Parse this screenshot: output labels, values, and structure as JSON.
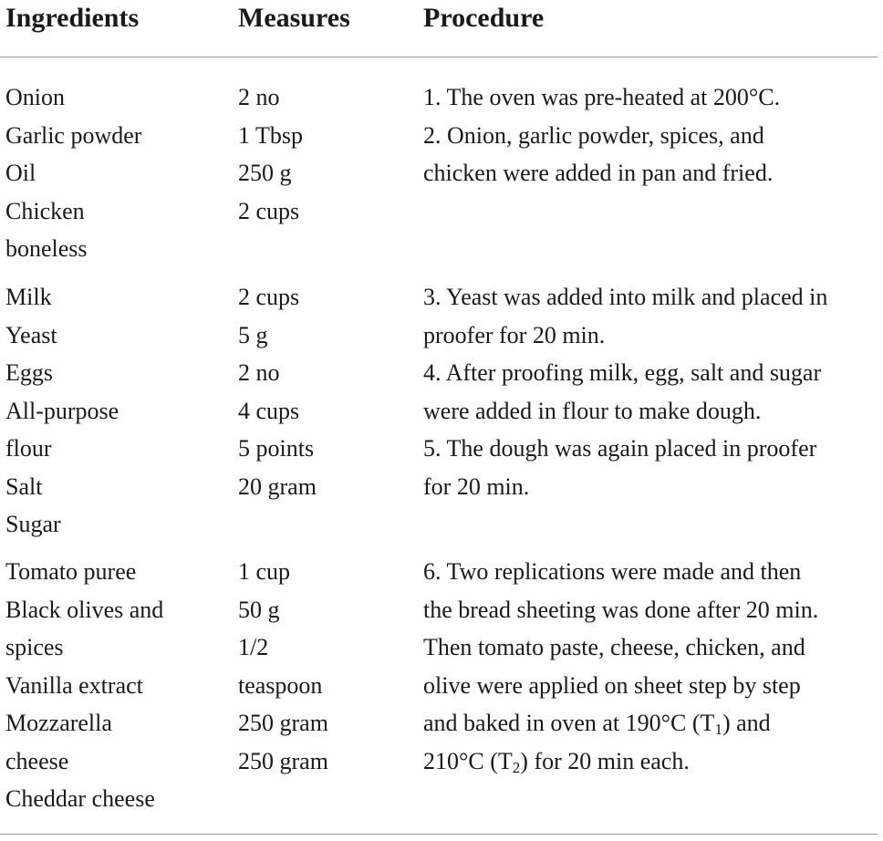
{
  "table": {
    "header": {
      "ingredients": "Ingredients",
      "measures": "Measures",
      "procedure": "Procedure"
    },
    "rows": [
      {
        "ingredients": [
          "Onion",
          "Garlic powder",
          "Oil",
          "Chicken",
          "boneless"
        ],
        "measures": [
          "2 no",
          "1 Tbsp",
          "250 g",
          "2 cups"
        ],
        "procedure": [
          "1. The oven was pre-heated at 200°C.",
          "2. Onion, garlic powder, spices, and",
          "chicken were added in pan and fried."
        ]
      },
      {
        "ingredients": [
          "Milk",
          "Yeast",
          "Eggs",
          "All-purpose",
          "flour",
          "Salt",
          "Sugar"
        ],
        "measures": [
          "2 cups",
          "5 g",
          "2 no",
          "4 cups",
          "5 points",
          "20 gram"
        ],
        "procedure": [
          "3. Yeast was added into milk and placed in",
          "proofer for 20 min.",
          "4. After proofing milk, egg, salt and sugar",
          "were added in flour to make dough.",
          "5. The dough was again placed in proofer",
          "for 20 min."
        ]
      },
      {
        "ingredients": [
          "Tomato puree",
          "Black olives and",
          "spices",
          "Vanilla extract",
          "Mozzarella",
          "cheese",
          "Cheddar cheese"
        ],
        "measures": [
          "1 cup",
          "50 g",
          "1/2",
          "teaspoon",
          "250 gram",
          "250 gram"
        ],
        "procedure": [
          "6. Two replications were made and then",
          "the bread sheeting was done after 20 min.",
          "Then tomato paste, cheese, chicken, and",
          "olive were applied on sheet step by step",
          [
            "and baked in oven at 190°C (T",
            "1",
            ") and"
          ],
          [
            "210°C (T",
            "2",
            ") for 20 min each."
          ]
        ]
      }
    ]
  }
}
